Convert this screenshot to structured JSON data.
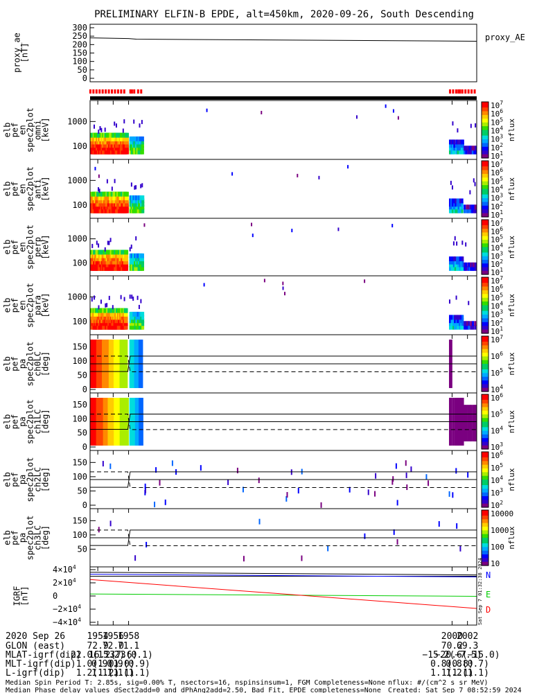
{
  "title": "PRELIMINARY ELFIN-B EPDE, alt=450km, 2020-09-26, South Descending",
  "chart_data": [
    {
      "type": "line",
      "panel_id": "proxy_ae",
      "ylabel_lines": [
        "proxy_ae",
        "[nT]"
      ],
      "legend_right": "proxy_AE",
      "ylim": [
        0,
        300
      ],
      "yticks": [
        "300",
        "250",
        "200",
        "150",
        "100",
        "50",
        "0"
      ],
      "x": [
        1953.0,
        1958.0,
        1959.0,
        2003.2
      ],
      "values": [
        240,
        236,
        232,
        220
      ]
    },
    {
      "type": "coverage-bars",
      "panel_id": "data-coverage",
      "segments": [
        [
          1952.9,
          1953.1
        ],
        [
          1953.3,
          1953.5
        ],
        [
          1953.7,
          1953.9
        ],
        [
          1954.1,
          1954.3
        ],
        [
          1954.5,
          1954.7
        ],
        [
          1954.9,
          1955.1
        ],
        [
          1955.3,
          1955.5
        ],
        [
          1955.7,
          1955.9
        ],
        [
          1956.1,
          1956.3
        ],
        [
          1956.5,
          1956.7
        ],
        [
          1956.9,
          1957.1
        ],
        [
          1957.3,
          1957.5
        ],
        [
          1958.1,
          1958.2
        ],
        [
          1958.3,
          1958.5
        ],
        [
          1958.6,
          1958.8
        ],
        [
          1959.1,
          1959.3
        ],
        [
          1959.5,
          1959.7
        ],
        [
          1999.6,
          1999.8
        ],
        [
          2000.0,
          2000.1
        ],
        [
          2000.4,
          2000.5
        ],
        [
          2000.7,
          2000.8
        ],
        [
          2000.9,
          2001.1
        ],
        [
          2001.2,
          2001.3
        ],
        [
          2001.6,
          2001.8
        ],
        [
          2002.0,
          2002.2
        ],
        [
          2002.4,
          2002.6
        ],
        [
          2002.8,
          2003.0
        ]
      ]
    },
    {
      "type": "heatmap",
      "panel_id": "en-omni",
      "ylabel_lines": [
        "elb",
        "pef",
        "en",
        "spec2plot",
        "omni",
        "[keV]"
      ],
      "yscale": "log",
      "yticks": [
        "1000",
        "100"
      ],
      "colorbar": {
        "label": "nflux",
        "ticks": [
          "10^7",
          "10^6",
          "10^5",
          "10^4",
          "10^3",
          "10^2",
          "10^1"
        ]
      }
    },
    {
      "type": "heatmap",
      "panel_id": "en-anti",
      "ylabel_lines": [
        "elb",
        "pef",
        "en",
        "spec2plot",
        "anti",
        "[keV]"
      ],
      "yscale": "log",
      "yticks": [
        "1000",
        "100"
      ],
      "colorbar": {
        "label": "nflux",
        "ticks": [
          "10^7",
          "10^6",
          "10^5",
          "10^4",
          "10^3",
          "10^2",
          "10^1"
        ]
      }
    },
    {
      "type": "heatmap",
      "panel_id": "en-perp",
      "ylabel_lines": [
        "elb",
        "pef",
        "en",
        "spec2plot",
        "perp",
        "[keV]"
      ],
      "yscale": "log",
      "yticks": [
        "1000",
        "100"
      ],
      "colorbar": {
        "label": "nflux",
        "ticks": [
          "10^7",
          "10^6",
          "10^5",
          "10^4",
          "10^3",
          "10^2",
          "10^1"
        ]
      }
    },
    {
      "type": "heatmap",
      "panel_id": "en-para",
      "ylabel_lines": [
        "elb",
        "pef",
        "en",
        "spec2plot",
        "para",
        "[keV]"
      ],
      "yscale": "log",
      "yticks": [
        "1000",
        "100"
      ],
      "colorbar": {
        "label": "nflux",
        "ticks": [
          "10^7",
          "10^6",
          "10^5",
          "10^4",
          "10^3",
          "10^2",
          "10^1"
        ]
      }
    },
    {
      "type": "heatmap",
      "panel_id": "pa-ch0",
      "ylabel_lines": [
        "elb",
        "pef",
        "pa",
        "spec2plot",
        "ch0LC",
        "[deg]"
      ],
      "ylim": [
        0,
        180
      ],
      "yticks": [
        "150",
        "100",
        "50",
        "0"
      ],
      "colorbar": {
        "label": "nflux",
        "ticks": [
          "10^7",
          "10^6",
          "10^5",
          "10^4"
        ]
      }
    },
    {
      "type": "heatmap",
      "panel_id": "pa-ch1",
      "ylabel_lines": [
        "elb",
        "pef",
        "pa",
        "spec2plot",
        "ch1LC",
        "[deg]"
      ],
      "ylim": [
        0,
        180
      ],
      "yticks": [
        "150",
        "100",
        "50",
        "0"
      ],
      "colorbar": {
        "label": "nflux",
        "ticks": [
          "10^6",
          "10^5",
          "10^4",
          "10^3"
        ]
      }
    },
    {
      "type": "heatmap",
      "panel_id": "pa-ch2",
      "ylabel_lines": [
        "elb",
        "pef",
        "pa",
        "spec2plot",
        "ch2LC",
        "[deg]"
      ],
      "ylim": [
        0,
        180
      ],
      "yticks": [
        "150",
        "100",
        "50",
        "0"
      ],
      "colorbar": {
        "label": "nflux",
        "ticks": [
          "10^6",
          "10^5",
          "10^4",
          "10^3",
          "10^2"
        ]
      }
    },
    {
      "type": "heatmap",
      "panel_id": "pa-ch3",
      "ylabel_lines": [
        "elb",
        "pef",
        "pa",
        "spec2plot",
        "ch3LC",
        "[deg]"
      ],
      "ylim": [
        0,
        180
      ],
      "yticks": [
        "150",
        "100",
        "50"
      ],
      "colorbar": {
        "label": "nflux",
        "ticks": [
          "10000",
          "1000",
          "100",
          "10"
        ]
      }
    },
    {
      "type": "line",
      "panel_id": "igrf",
      "ylabel_lines": [
        "IGRF",
        "[nT]"
      ],
      "ylim": [
        -40000,
        40000
      ],
      "yticks": [
        "4×10^4",
        "2×10^4",
        "0",
        "−2×10^4",
        "−4×10^4"
      ],
      "x": [
        1953.0,
        2003.2
      ],
      "series": [
        {
          "name": "N",
          "color": "#0000ff",
          "values": [
            33000,
            29000
          ]
        },
        {
          "name": "E",
          "color": "#00cc00",
          "values": [
            3000,
            -500
          ]
        },
        {
          "name": "D",
          "color": "#ff0000",
          "values": [
            25000,
            -19000
          ]
        }
      ],
      "black_line": [
        36000,
        32000
      ]
    }
  ],
  "x_axis": {
    "date_label": "2020 Sep 26",
    "ticks": [
      "1954",
      "1956",
      "1958",
      "2000",
      "2002"
    ],
    "tick_x": [
      1954,
      1956,
      1958,
      2000,
      2002
    ],
    "range": [
      1953.0,
      2003.2
    ]
  },
  "ephemeris": [
    {
      "label": "GLON (east)",
      "values": [
        "72.9",
        "72.0",
        "71.1",
        "70.2",
        "69.3"
      ]
    },
    {
      "label": "MLAT-igrf(dip)",
      "values": [
        "22.0(15.2)",
        "16.2(7.6)",
        "13.3(0.1)",
        "−15.2(−7.5)",
        "−20.6(−15.0)"
      ]
    },
    {
      "label": "MLT-igrf(dip)",
      "values": [
        "1.0(1.0)",
        "0.9(1.0)",
        "0.9(0.9)",
        "0.8(0.8)",
        "0.8(0.7)"
      ]
    },
    {
      "label": "L-igrf(dip)",
      "values": [
        "1.2(1.2)",
        "1.1(1.1)",
        "1.1(1.1)",
        "1.1(1.1)",
        "1.2(1.1)"
      ]
    }
  ],
  "footer": {
    "line1": "Median Spin Period T: 2.85s, sig=0.00% T, nsectors=16, nspinsinsum=1, FGM Completeness=None",
    "line2": "Median Phase delay values dSect2add=0 and dPhAng2add=2.50, Bad Fit, EPDE completeness=None",
    "units": "nflux: #/(cm^2 s sr MeV)",
    "created": "Created: Sat Sep  7 08:52:59 2024",
    "vertical_stamp": "Sat Sep  7 01:32:38 2024"
  },
  "colors": {
    "coverage": "#ff0000",
    "spectrum": [
      "#7a0080",
      "#3300cc",
      "#0000ff",
      "#0066ff",
      "#00aaff",
      "#00dddd",
      "#00cc66",
      "#33dd00",
      "#aaee00",
      "#ffff00",
      "#ffcc00",
      "#ff8800",
      "#ff4400",
      "#ff0000"
    ]
  }
}
